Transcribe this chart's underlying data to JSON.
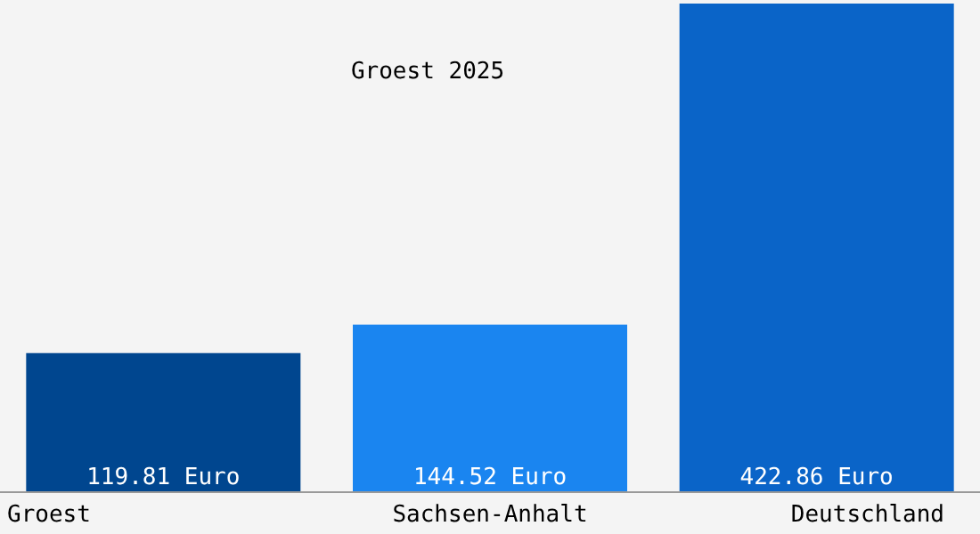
{
  "chart_data": {
    "type": "bar",
    "title": "Groest 2025",
    "categories": [
      "Groest",
      "Sachsen-Anhalt",
      "Deutschland"
    ],
    "values": [
      119.81,
      144.52,
      422.86
    ],
    "colors": [
      "#00468f",
      "#1a85f0",
      "#0a64c8"
    ],
    "value_labels": [
      "119.81 Euro",
      "144.52 Euro",
      "422.86 Euro"
    ]
  }
}
